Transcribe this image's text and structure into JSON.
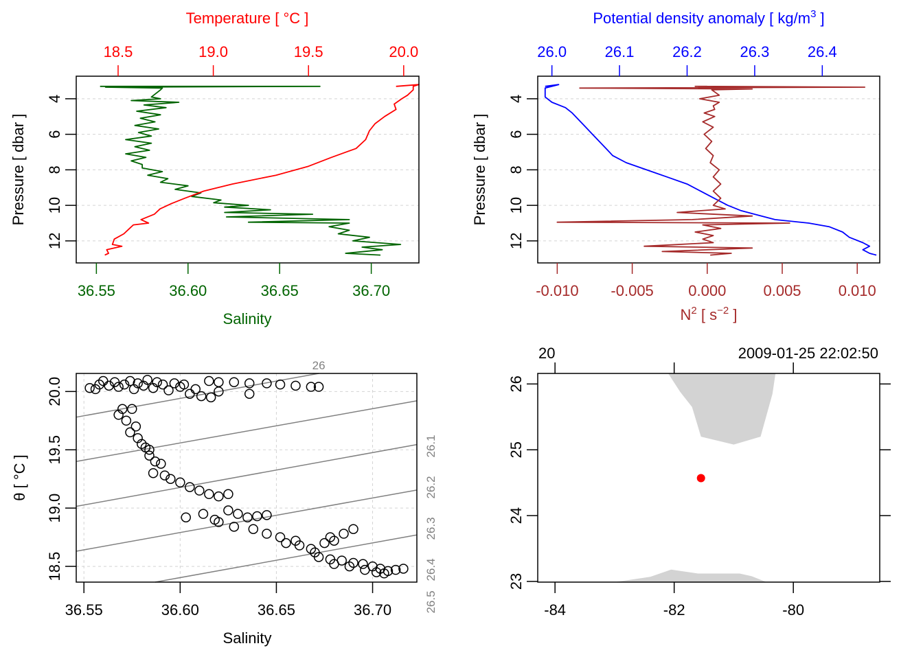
{
  "chart_data": [
    {
      "id": "profile-ts",
      "type": "line",
      "top_axis": {
        "label": "Temperature [ °C ]",
        "ticks": [
          "18.5",
          "19.0",
          "19.5",
          "20.0"
        ],
        "tick_values": [
          18.5,
          19.0,
          19.5,
          20.0
        ],
        "range": [
          18.28,
          20.08
        ],
        "color": "#ff0000"
      },
      "bottom_axis": {
        "label": "Salinity",
        "ticks": [
          "36.55",
          "36.60",
          "36.65",
          "36.70"
        ],
        "tick_values": [
          36.55,
          36.6,
          36.65,
          36.7
        ],
        "range": [
          36.539,
          36.726
        ],
        "color": "#006400"
      },
      "left_axis": {
        "label": "Pressure [ dbar ]",
        "ticks": [
          "4",
          "6",
          "8",
          "10",
          "12"
        ],
        "tick_values": [
          4,
          6,
          8,
          10,
          12
        ],
        "range": [
          13.24,
          2.73
        ],
        "color": "#000000"
      },
      "grid": true,
      "series": [
        {
          "name": "Salinity",
          "axis": "bottom",
          "color": "#006400",
          "pressure": [
            3.3,
            3.3,
            3.35,
            3.4,
            3.5,
            3.9,
            4.0,
            4.1,
            4.2,
            4.35,
            4.5,
            4.7,
            4.9,
            5.1,
            5.3,
            5.5,
            5.7,
            5.9,
            6.1,
            6.3,
            6.5,
            6.7,
            6.9,
            7.1,
            7.3,
            7.5,
            7.7,
            7.9,
            8.1,
            8.3,
            8.5,
            8.7,
            8.9,
            9.1,
            9.3,
            9.5,
            9.7,
            9.85,
            10.0,
            10.1,
            10.25,
            10.4,
            10.5,
            10.65,
            10.8,
            10.95,
            11.0,
            11.2,
            11.4,
            11.6,
            11.8,
            12.0,
            12.2,
            12.35,
            12.5,
            12.7,
            12.8
          ],
          "values": [
            36.552,
            36.672,
            36.555,
            36.586,
            36.585,
            36.58,
            36.585,
            36.569,
            36.595,
            36.576,
            36.588,
            36.572,
            36.585,
            36.574,
            36.582,
            36.571,
            36.584,
            36.573,
            36.58,
            36.566,
            36.58,
            36.571,
            36.579,
            36.566,
            36.577,
            36.569,
            36.575,
            36.575,
            36.586,
            36.578,
            36.589,
            36.585,
            36.6,
            36.593,
            36.607,
            36.602,
            36.618,
            36.614,
            36.633,
            36.62,
            36.645,
            36.62,
            36.668,
            36.621,
            36.688,
            36.633,
            36.688,
            36.677,
            36.688,
            36.682,
            36.699,
            36.69,
            36.716,
            36.695,
            36.706,
            36.686,
            36.705
          ]
        },
        {
          "name": "Temperature",
          "axis": "top",
          "color": "#ff0000",
          "pressure": [
            3.3,
            3.2,
            3.3,
            3.5,
            3.8,
            4.0,
            4.3,
            4.6,
            5.0,
            5.4,
            5.8,
            6.3,
            6.8,
            7.3,
            7.8,
            8.3,
            8.8,
            9.2,
            9.6,
            9.9,
            10.2,
            10.5,
            10.8,
            11.0,
            11.1,
            11.3,
            11.6,
            11.9,
            12.2,
            12.3,
            12.5,
            12.7,
            12.8
          ],
          "values": [
            19.96,
            20.08,
            20.05,
            20.05,
            20.02,
            19.99,
            19.95,
            19.96,
            19.9,
            19.85,
            19.82,
            19.8,
            19.75,
            19.62,
            19.5,
            19.33,
            19.1,
            18.95,
            18.85,
            18.78,
            18.72,
            18.69,
            18.62,
            18.66,
            18.58,
            18.56,
            18.53,
            18.48,
            18.47,
            18.52,
            18.44,
            18.45,
            18.43
          ]
        }
      ]
    },
    {
      "id": "profile-density",
      "type": "line",
      "top_axis": {
        "label": "Potential density anomaly [ kg/m³ ]",
        "ticks": [
          "26.0",
          "26.1",
          "26.2",
          "26.3",
          "26.4"
        ],
        "tick_values": [
          26.0,
          26.1,
          26.2,
          26.3,
          26.4
        ],
        "range": [
          25.979,
          26.485
        ],
        "color": "#0000ff"
      },
      "bottom_axis": {
        "label": "N² [ s⁻² ]",
        "ticks": [
          "-0.010",
          "-0.005",
          "0.000",
          "0.005",
          "0.010"
        ],
        "tick_values": [
          -0.01,
          -0.005,
          0.0,
          0.005,
          0.01
        ],
        "range": [
          -0.0113,
          0.0115
        ],
        "color": "#a52a2a"
      },
      "left_axis": {
        "label": "Pressure [ dbar ]",
        "ticks": [
          "4",
          "6",
          "8",
          "10",
          "12"
        ],
        "tick_values": [
          4,
          6,
          8,
          10,
          12
        ],
        "range": [
          13.24,
          2.73
        ],
        "color": "#000000"
      },
      "grid": true,
      "series": [
        {
          "name": "Potential density anomaly",
          "axis": "top",
          "color": "#0000ff",
          "pressure": [
            3.3,
            3.2,
            3.4,
            3.9,
            4.2,
            4.5,
            4.8,
            5.2,
            5.6,
            6.0,
            6.4,
            6.8,
            7.2,
            7.6,
            8.0,
            8.4,
            8.8,
            9.2,
            9.6,
            10.0,
            10.3,
            10.5,
            10.8,
            11.0,
            11.2,
            11.5,
            11.8,
            12.1,
            12.3,
            12.5,
            12.7,
            12.8
          ],
          "values": [
            25.99,
            26.01,
            25.99,
            25.99,
            26.0,
            26.02,
            26.03,
            26.04,
            26.05,
            26.06,
            26.07,
            26.08,
            26.09,
            26.11,
            26.14,
            26.17,
            26.2,
            26.22,
            26.24,
            26.26,
            26.28,
            26.3,
            26.33,
            26.38,
            26.41,
            26.43,
            26.44,
            26.46,
            26.47,
            26.46,
            26.47,
            26.48
          ]
        },
        {
          "name": "N²",
          "axis": "bottom",
          "color": "#a52a2a",
          "pressure": [
            3.3,
            3.3,
            3.35,
            3.4,
            3.45,
            3.5,
            3.8,
            4.0,
            4.2,
            4.4,
            4.6,
            4.8,
            5.0,
            5.3,
            5.6,
            6.0,
            6.4,
            6.8,
            7.2,
            7.6,
            8.0,
            8.4,
            8.8,
            9.2,
            9.6,
            10.0,
            10.2,
            10.4,
            10.6,
            10.8,
            10.95,
            11.0,
            11.1,
            11.3,
            11.5,
            11.7,
            11.9,
            12.1,
            12.3,
            12.4,
            12.6,
            12.7,
            12.8
          ],
          "values": [
            0.0,
            -0.0008,
            0.0105,
            -0.0085,
            0.003,
            0.0003,
            0.0008,
            -0.0005,
            0.0008,
            0.0004,
            0.0005,
            -0.0002,
            0.0005,
            -0.0003,
            0.0004,
            -0.0002,
            0.0003,
            -0.0001,
            0.0004,
            0.0002,
            0.0008,
            0.0004,
            0.0009,
            0.0004,
            0.0009,
            0.0004,
            0.0012,
            -0.002,
            0.003,
            -0.001,
            -0.01,
            0.0055,
            -0.0003,
            0.0009,
            -0.0008,
            0.0004,
            -0.0003,
            0.0004,
            -0.0042,
            0.003,
            -0.003,
            0.0016,
            0.0002
          ]
        }
      ]
    },
    {
      "id": "ts-diagram",
      "type": "scatter",
      "xlabel": "Salinity",
      "ylabel": "θ [ °C ]",
      "x_ticks": [
        "36.55",
        "36.60",
        "36.65",
        "36.70"
      ],
      "x_tick_values": [
        36.55,
        36.6,
        36.65,
        36.7
      ],
      "y_ticks": [
        "18.5",
        "19.0",
        "19.5",
        "20.0"
      ],
      "y_tick_values": [
        18.5,
        19.0,
        19.5,
        20.0
      ],
      "xlim": [
        36.546,
        36.723
      ],
      "ylim": [
        18.365,
        20.155
      ],
      "grid": true,
      "isopycnals": [
        {
          "label": "26",
          "start": [
            36.546,
            19.78
          ],
          "end": [
            36.672,
            20.155
          ],
          "label_pos": "top"
        },
        {
          "label": "26.1",
          "start": [
            36.546,
            19.4
          ],
          "end": [
            36.723,
            19.92
          ],
          "label_pos": "right"
        },
        {
          "label": "26.2",
          "start": [
            36.546,
            19.015
          ],
          "end": [
            36.723,
            19.545
          ],
          "label_pos": "right"
        },
        {
          "label": "26.3",
          "start": [
            36.546,
            18.63
          ],
          "end": [
            36.723,
            19.155
          ],
          "label_pos": "right"
        },
        {
          "label": "26.4",
          "start": [
            36.587,
            18.365
          ],
          "end": [
            36.723,
            18.77
          ],
          "label_pos": "right"
        },
        {
          "label": "26.5",
          "start": null,
          "end": null,
          "label_pos": "right"
        }
      ],
      "points": [
        [
          36.553,
          20.03
        ],
        [
          36.556,
          20.02
        ],
        [
          36.558,
          20.06
        ],
        [
          36.56,
          20.09
        ],
        [
          36.563,
          20.05
        ],
        [
          36.566,
          20.08
        ],
        [
          36.568,
          20.04
        ],
        [
          36.571,
          20.06
        ],
        [
          36.574,
          20.09
        ],
        [
          36.576,
          20.02
        ],
        [
          36.578,
          20.07
        ],
        [
          36.581,
          20.05
        ],
        [
          36.583,
          20.1
        ],
        [
          36.586,
          20.03
        ],
        [
          36.588,
          20.08
        ],
        [
          36.591,
          20.06
        ],
        [
          36.594,
          20.01
        ],
        [
          36.597,
          20.07
        ],
        [
          36.6,
          20.04
        ],
        [
          36.602,
          20.06
        ],
        [
          36.605,
          19.98
        ],
        [
          36.608,
          20.02
        ],
        [
          36.611,
          19.96
        ],
        [
          36.616,
          19.95
        ],
        [
          36.62,
          20.0
        ],
        [
          36.636,
          19.98
        ],
        [
          36.615,
          20.09
        ],
        [
          36.62,
          20.08
        ],
        [
          36.628,
          20.08
        ],
        [
          36.636,
          20.07
        ],
        [
          36.645,
          20.07
        ],
        [
          36.652,
          20.06
        ],
        [
          36.66,
          20.05
        ],
        [
          36.668,
          20.04
        ],
        [
          36.672,
          20.04
        ],
        [
          36.57,
          19.85
        ],
        [
          36.568,
          19.8
        ],
        [
          36.572,
          19.75
        ],
        [
          36.575,
          19.85
        ],
        [
          36.577,
          19.7
        ],
        [
          36.574,
          19.65
        ],
        [
          36.578,
          19.6
        ],
        [
          36.58,
          19.55
        ],
        [
          36.582,
          19.52
        ],
        [
          36.584,
          19.5
        ],
        [
          36.584,
          19.45
        ],
        [
          36.587,
          19.4
        ],
        [
          36.59,
          19.38
        ],
        [
          36.586,
          19.3
        ],
        [
          36.592,
          19.28
        ],
        [
          36.595,
          19.25
        ],
        [
          36.6,
          19.22
        ],
        [
          36.605,
          19.18
        ],
        [
          36.61,
          19.15
        ],
        [
          36.615,
          19.12
        ],
        [
          36.62,
          19.1
        ],
        [
          36.625,
          19.12
        ],
        [
          36.603,
          18.92
        ],
        [
          36.612,
          18.95
        ],
        [
          36.618,
          18.9
        ],
        [
          36.625,
          18.98
        ],
        [
          36.63,
          18.95
        ],
        [
          36.635,
          18.92
        ],
        [
          36.64,
          18.93
        ],
        [
          36.645,
          18.94
        ],
        [
          36.62,
          18.88
        ],
        [
          36.628,
          18.84
        ],
        [
          36.638,
          18.82
        ],
        [
          36.645,
          18.78
        ],
        [
          36.652,
          18.75
        ],
        [
          36.66,
          18.72
        ],
        [
          36.655,
          18.7
        ],
        [
          36.662,
          18.68
        ],
        [
          36.668,
          18.65
        ],
        [
          36.675,
          18.7
        ],
        [
          36.68,
          18.72
        ],
        [
          36.685,
          18.78
        ],
        [
          36.69,
          18.82
        ],
        [
          36.678,
          18.75
        ],
        [
          36.67,
          18.62
        ],
        [
          36.672,
          18.58
        ],
        [
          36.678,
          18.56
        ],
        [
          36.684,
          18.55
        ],
        [
          36.69,
          18.53
        ],
        [
          36.695,
          18.52
        ],
        [
          36.7,
          18.5
        ],
        [
          36.704,
          18.48
        ],
        [
          36.708,
          18.46
        ],
        [
          36.712,
          18.47
        ],
        [
          36.716,
          18.48
        ],
        [
          36.702,
          18.45
        ],
        [
          36.706,
          18.44
        ],
        [
          36.696,
          18.47
        ],
        [
          36.688,
          18.5
        ],
        [
          36.68,
          18.52
        ]
      ]
    },
    {
      "id": "station-map",
      "type": "scatter",
      "top_left_label": "20",
      "top_right_label": "2009-01-25 22:02:50",
      "x_ticks": [
        "-84",
        "-82",
        "-80"
      ],
      "x_tick_values": [
        -84,
        -82,
        -80
      ],
      "y_ticks": [
        "23",
        "24",
        "25",
        "26"
      ],
      "y_tick_values": [
        23,
        24,
        25,
        26
      ],
      "xlim": [
        -84.29,
        -78.55
      ],
      "ylim": [
        22.99,
        26.16
      ],
      "station": {
        "lon": -81.55,
        "lat": 24.57,
        "color": "#ff0000"
      },
      "land_color": "#d3d3d3",
      "land": [
        [
          [
            -82.1,
            26.16
          ],
          [
            -81.9,
            25.88
          ],
          [
            -81.7,
            25.65
          ],
          [
            -81.55,
            25.2
          ],
          [
            -81.0,
            25.08
          ],
          [
            -80.55,
            25.2
          ],
          [
            -80.35,
            25.85
          ],
          [
            -80.3,
            26.16
          ]
        ],
        [
          [
            -83.0,
            22.99
          ],
          [
            -82.4,
            23.07
          ],
          [
            -82.05,
            23.18
          ],
          [
            -81.6,
            23.12
          ],
          [
            -80.9,
            23.12
          ],
          [
            -80.7,
            23.08
          ],
          [
            -80.45,
            22.99
          ]
        ]
      ]
    }
  ]
}
